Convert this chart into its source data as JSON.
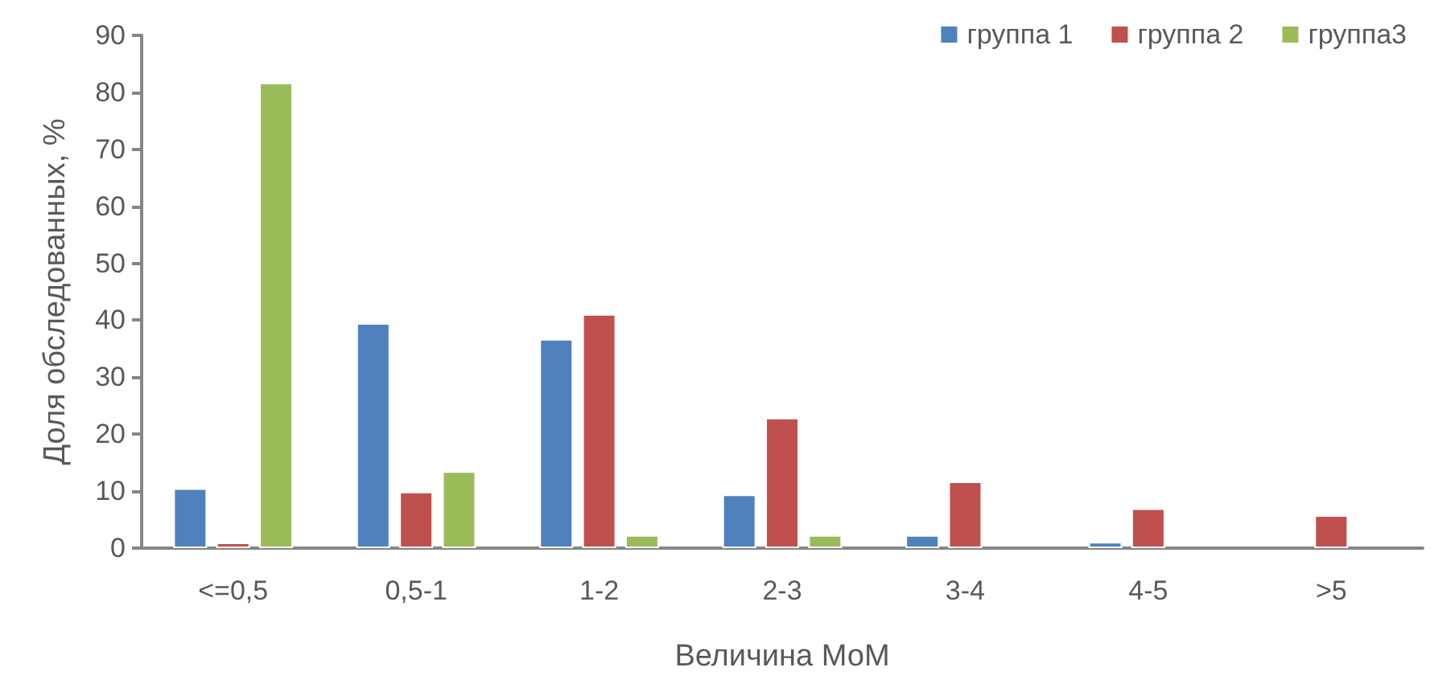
{
  "chart_data": {
    "type": "bar",
    "xlabel": "Величина МоМ",
    "ylabel": "Доля обследованных, %",
    "categories": [
      "<=0,5",
      "0,5-1",
      "1-2",
      "2-3",
      "3-4",
      "4-5",
      ">5"
    ],
    "series": [
      {
        "name": "группа 1",
        "color": "#4f81bd",
        "values": [
          10.5,
          39.5,
          36.7,
          9.4,
          2.3,
          1.1,
          null
        ]
      },
      {
        "name": "группа 2",
        "color": "#c0504d",
        "values": [
          1.0,
          9.9,
          41.1,
          22.9,
          11.7,
          7.0,
          5.8
        ]
      },
      {
        "name": "группа3",
        "color": "#9bbb59",
        "values": [
          81.7,
          13.5,
          2.3,
          2.3,
          null,
          null,
          null
        ]
      }
    ],
    "ylim": [
      0,
      90
    ],
    "yticks": [
      0,
      10,
      20,
      30,
      40,
      50,
      60,
      70,
      80,
      90
    ],
    "grid": false,
    "legend": "top right"
  }
}
